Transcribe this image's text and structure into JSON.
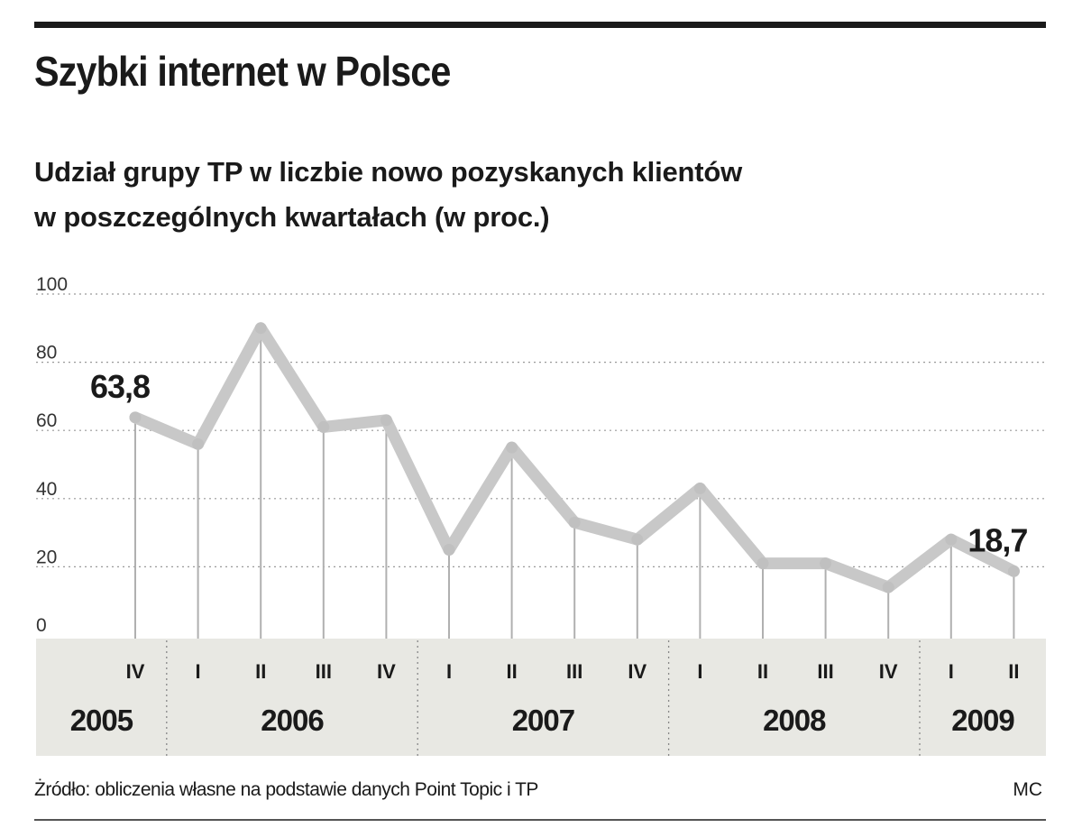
{
  "title": "Szybki internet w Polsce",
  "subtitle_line1": "Udział grupy TP w liczbie nowo pozyskanych klientów",
  "subtitle_line2": "w poszczególnych kwartałach (w proc.)",
  "source": "Żródło: obliczenia własne na podstawie danych Point Topic i TP",
  "author": "MC",
  "colors": {
    "line": "#c8c8c8",
    "band": "#e8e8e3",
    "text": "#1a1a1a",
    "grid": "#999999"
  },
  "chart_data": {
    "type": "line",
    "title": "Szybki internet w Polsce",
    "quarters": [
      "IV",
      "I",
      "II",
      "III",
      "IV",
      "I",
      "II",
      "III",
      "IV",
      "I",
      "II",
      "III",
      "IV",
      "I",
      "II"
    ],
    "years": [
      {
        "label": "2005",
        "quarters": 1
      },
      {
        "label": "2006",
        "quarters": 4
      },
      {
        "label": "2007",
        "quarters": 4
      },
      {
        "label": "2008",
        "quarters": 4
      },
      {
        "label": "2009",
        "quarters": 2
      }
    ],
    "series": [
      {
        "values": [
          63.8,
          56,
          90,
          61,
          63,
          25,
          55,
          33,
          28,
          43,
          21,
          21,
          14,
          28,
          18.7
        ]
      }
    ],
    "annotations": [
      {
        "index": 0,
        "text": "63,8"
      },
      {
        "index": 14,
        "text": "18,7"
      }
    ],
    "yticks": [
      0,
      20,
      40,
      60,
      80,
      100
    ],
    "ylim": [
      0,
      100
    ],
    "grid": true
  }
}
